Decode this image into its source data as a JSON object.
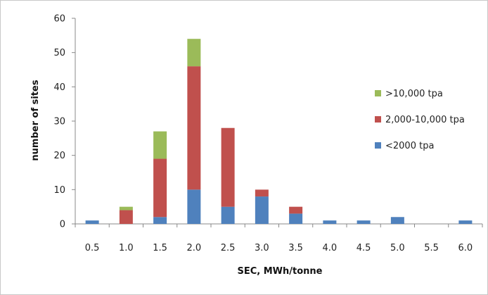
{
  "chart_data": {
    "type": "bar",
    "stacked": true,
    "title": "",
    "xlabel": "SEC, MWh/tonne",
    "ylabel": "number of sites",
    "ylim": [
      0,
      60
    ],
    "yticks": [
      0,
      10,
      20,
      30,
      40,
      50,
      60
    ],
    "categories": [
      "0.5",
      "1.0",
      "1.5",
      "2.0",
      "2.5",
      "3.0",
      "3.5",
      "4.0",
      "4.5",
      "5.0",
      "5.5",
      "6.0"
    ],
    "grid": false,
    "legend_position": "right",
    "series": [
      {
        "name": "<2000 tpa",
        "color": "#4f81bd",
        "values": [
          1,
          0,
          2,
          10,
          5,
          8,
          3,
          1,
          1,
          2,
          0,
          1
        ]
      },
      {
        "name": "2,000-10,000 tpa",
        "color": "#c0504d",
        "values": [
          0,
          4,
          17,
          36,
          23,
          2,
          2,
          0,
          0,
          0,
          0,
          0
        ]
      },
      {
        "name": ">10,000 tpa",
        "color": "#9bbb59",
        "values": [
          0,
          1,
          8,
          8,
          0,
          0,
          0,
          0,
          0,
          0,
          0,
          0
        ]
      }
    ]
  }
}
